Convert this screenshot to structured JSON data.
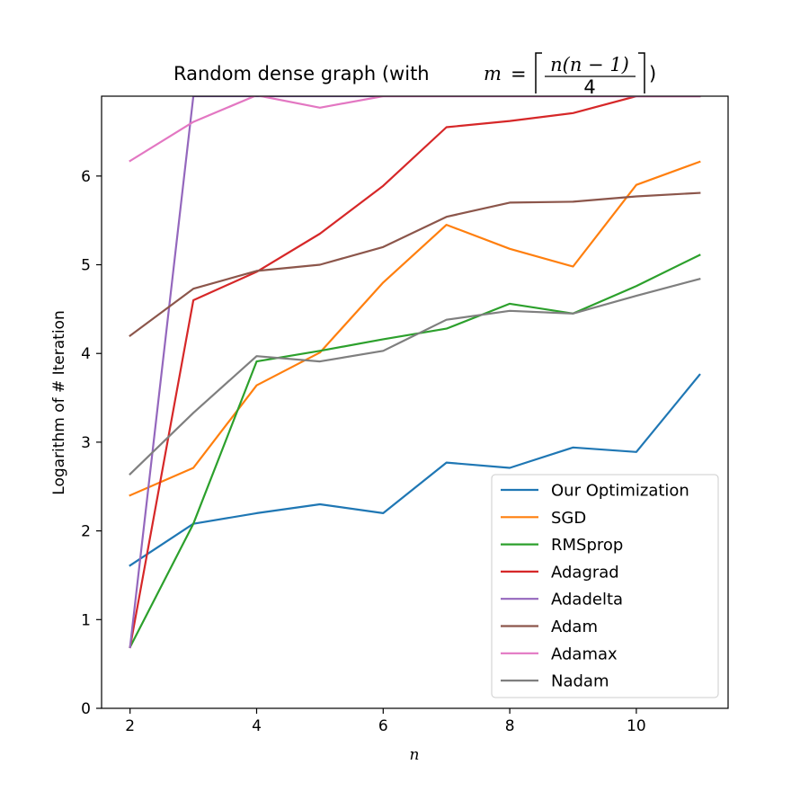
{
  "chart_data": {
    "type": "line",
    "title_prefix": "Random dense graph (with ",
    "title_math": {
      "lhs": "m",
      "eq": "=",
      "numerator": "n(n − 1)",
      "denominator": "4"
    },
    "title_suffix": ")",
    "xlabel": "n",
    "ylabel": "Logarithm of # Iteration",
    "xlim": [
      1.55,
      11.45
    ],
    "ylim": [
      0,
      6.9
    ],
    "xticks": [
      2,
      4,
      6,
      8,
      10
    ],
    "yticks": [
      0,
      1,
      2,
      3,
      4,
      5,
      6
    ],
    "grid": false,
    "legend_position": "lower-right",
    "x": [
      2,
      3,
      4,
      5,
      6,
      7,
      8,
      9,
      10,
      11
    ],
    "series": [
      {
        "name": "Our Optimization",
        "color": "#1f77b4",
        "values": [
          1.61,
          2.08,
          2.2,
          2.3,
          2.2,
          2.77,
          2.71,
          2.94,
          2.89,
          3.76
        ]
      },
      {
        "name": "SGD",
        "color": "#ff7f0e",
        "values": [
          2.4,
          2.71,
          3.64,
          4.01,
          4.8,
          5.45,
          5.18,
          4.98,
          5.9,
          6.16
        ]
      },
      {
        "name": "RMSprop",
        "color": "#2ca02c",
        "values": [
          0.69,
          2.08,
          3.91,
          4.03,
          4.16,
          4.28,
          4.56,
          4.45,
          4.76,
          5.11
        ]
      },
      {
        "name": "Adagrad",
        "color": "#d62728",
        "values": [
          0.69,
          4.6,
          4.92,
          5.35,
          5.89,
          6.55,
          6.62,
          6.71,
          6.9,
          6.9
        ]
      },
      {
        "name": "Adadelta",
        "color": "#9467bd",
        "values": [
          0.69,
          6.9,
          6.9,
          6.9,
          6.9,
          6.9,
          6.9,
          6.9,
          6.9,
          6.9
        ]
      },
      {
        "name": "Adam",
        "color": "#8c564b",
        "values": [
          4.2,
          4.73,
          4.93,
          5.0,
          5.2,
          5.54,
          5.7,
          5.71,
          5.77,
          5.81
        ]
      },
      {
        "name": "Adamax",
        "color": "#e377c2",
        "values": [
          6.17,
          6.61,
          6.91,
          6.77,
          6.9,
          6.9,
          6.9,
          6.9,
          6.9,
          6.9
        ]
      },
      {
        "name": "Nadam",
        "color": "#7f7f7f",
        "values": [
          2.64,
          3.33,
          3.97,
          3.91,
          4.03,
          4.38,
          4.48,
          4.45,
          4.65,
          4.84
        ]
      }
    ]
  }
}
